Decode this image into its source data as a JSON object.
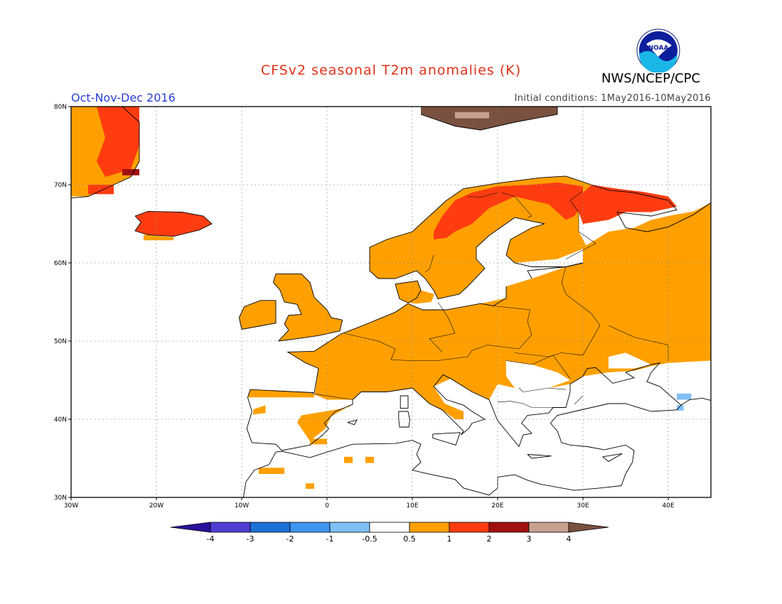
{
  "header": {
    "title": "CFSv2 seasonal T2m anomalies (K)",
    "agency": "NWS/NCEP/CPC",
    "season": "Oct-Nov-Dec 2016",
    "initial_conditions": "Initial conditions: 1May2016-10May2016",
    "logo_text": "NOAA"
  },
  "map": {
    "lon_range": [
      -30,
      45
    ],
    "lat_range": [
      30,
      80
    ],
    "grid": true,
    "lat_labels": [
      "80N",
      "70N",
      "60N",
      "50N",
      "40N",
      "30N"
    ],
    "lon_labels": [
      "30W",
      "20W",
      "10W",
      "0",
      "10E",
      "20E",
      "30E",
      "40E"
    ]
  },
  "colorbar": {
    "labels": [
      "-4",
      "-3",
      "-2",
      "-1",
      "-0.5",
      "0.5",
      "1",
      "2",
      "3",
      "4"
    ],
    "colors": [
      "#2a0f9a",
      "#4e3fd2",
      "#1e6fd6",
      "#3d96ee",
      "#80c0f5",
      "#ffffff",
      "#ffa000",
      "#ff3c10",
      "#a01010",
      "#c8a090",
      "#7a5040"
    ]
  },
  "legend_colors": {
    "orange": "#ffa000",
    "red": "#ff3c10",
    "darkred": "#a01010",
    "tan": "#c8a090",
    "brown": "#7a5040",
    "lightblue": "#80c0f5"
  }
}
